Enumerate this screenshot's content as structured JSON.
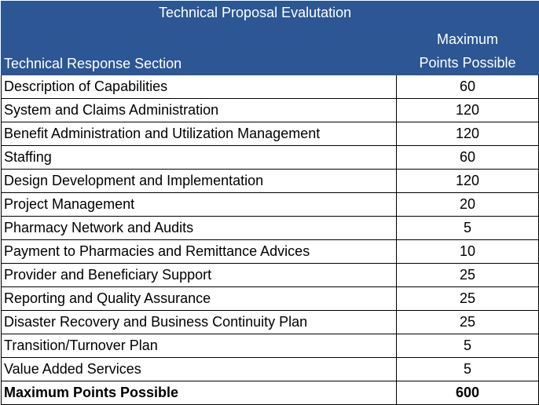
{
  "table": {
    "title": "Technical Proposal Evalutation",
    "col_section": "Technical Response Section",
    "col_points_line1": "Maximum",
    "col_points_line2": "Points Possible",
    "rows": [
      {
        "section": "Description of Capabilities",
        "points": "60"
      },
      {
        "section": "System and Claims Administration",
        "points": "120"
      },
      {
        "section": "Benefit Administration and Utilization Management",
        "points": "120"
      },
      {
        "section": "Staffing",
        "points": "60"
      },
      {
        "section": "Design Development and Implementation",
        "points": "120"
      },
      {
        "section": "Project Management",
        "points": "20"
      },
      {
        "section": "Pharmacy Network and Audits",
        "points": "5"
      },
      {
        "section": "Payment to Pharmacies and Remittance Advices",
        "points": "10"
      },
      {
        "section": "Provider and Beneficiary Support",
        "points": "25"
      },
      {
        "section": "Reporting and Quality Assurance",
        "points": "25"
      },
      {
        "section": "Disaster Recovery and Business Continuity Plan",
        "points": "25"
      },
      {
        "section": "Transition/Turnover Plan",
        "points": "5"
      },
      {
        "section": "Value Added Services",
        "points": "5"
      }
    ],
    "total": {
      "section": "Maximum Points Possible",
      "points": "600"
    }
  },
  "colors": {
    "header_bg": "#2c5694",
    "header_text": "#ffffff",
    "border": "#000000"
  }
}
